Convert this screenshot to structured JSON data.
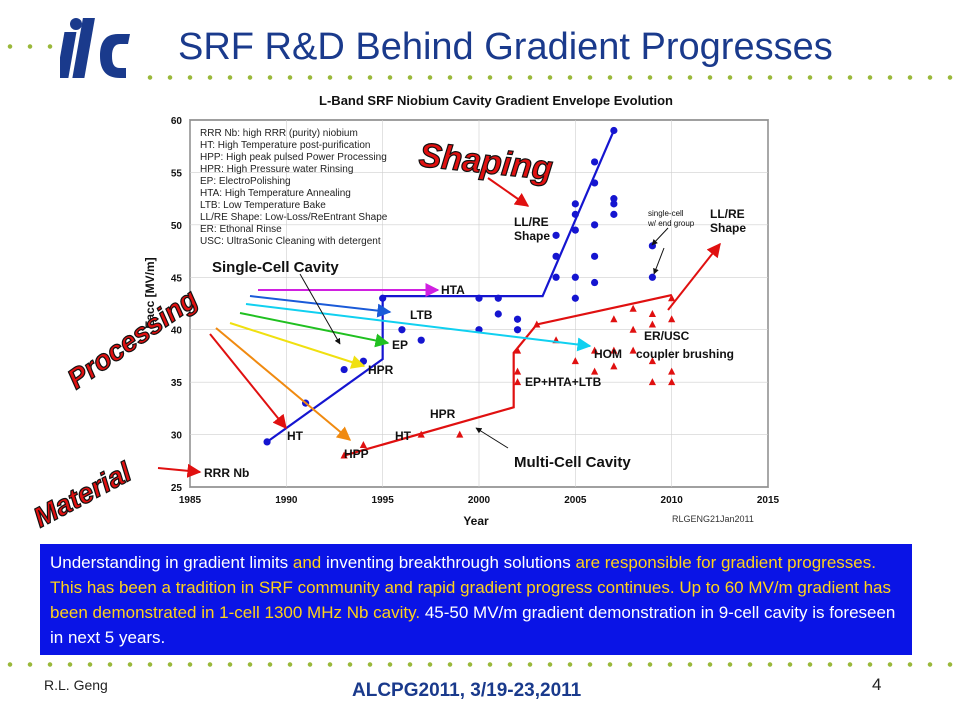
{
  "slide": {
    "logo_text": "ilc",
    "title": "SRF R&D Behind Gradient Progresses",
    "footer_author": "R.L. Geng",
    "footer_conference": "ALCPG2011, 3/19-23,2011",
    "page_number": "4"
  },
  "textbox": {
    "segments": [
      {
        "text": "Understanding in gradient limits ",
        "color": "white"
      },
      {
        "text": "and",
        "color": "yellow"
      },
      {
        "text": " inventing breakthrough solutions ",
        "color": "white"
      },
      {
        "text": "are responsible for",
        "color": "yellow"
      },
      {
        "text": " gradient progresses. This has been a tradition in SRF community and rapid gradient progress continues. Up to 60 MV/m gradient has been demonstrated in 1-cell 1300 MHz Nb cavity. ",
        "color": "yellow"
      },
      {
        "text": "45-50 MV/m gradient demonstration in 9-cell cavity is foreseen in next 5 years.",
        "color": "white"
      }
    ]
  },
  "chart_data": {
    "type": "scatter",
    "title": "L-Band SRF Niobium Cavity Gradient Envelope Evolution",
    "xlabel": "Year",
    "ylabel": "Eacc [MV/m]",
    "xlim": [
      1985,
      2015
    ],
    "ylim": [
      25,
      60
    ],
    "xticks": [
      1985,
      1990,
      1995,
      2000,
      2005,
      2010,
      2015
    ],
    "yticks": [
      25,
      30,
      35,
      40,
      45,
      50,
      55,
      60
    ],
    "credit": "RLGENG21Jan2011",
    "legend": [
      "RRR Nb: high RRR (purity) niobium",
      "HT: High Temperature post-purification",
      "HPP: High peak pulsed Power Processing",
      "HPR: High Pressure water Rinsing",
      "EP: ElectroPolishing",
      "HTA: High Temperature Annealing",
      "LTB: Low Temperature Bake",
      "LL/RE Shape: Low-Loss/ReEntrant Shape",
      "ER: Ethonal Rinse",
      "USC: UltraSonic Cleaning with detergent"
    ],
    "series": [
      {
        "name": "Single-Cell Cavity",
        "color": "#1515d0",
        "marker": "circle",
        "points": [
          [
            1989,
            29.3
          ],
          [
            1991,
            33
          ],
          [
            1993,
            36.2
          ],
          [
            1994,
            37
          ],
          [
            1995,
            43
          ],
          [
            1996,
            40
          ],
          [
            1997,
            39
          ],
          [
            2000,
            43
          ],
          [
            2000,
            40
          ],
          [
            2001,
            43
          ],
          [
            2001,
            41.5
          ],
          [
            2002,
            40
          ],
          [
            2002,
            41
          ],
          [
            2004,
            45
          ],
          [
            2004,
            47
          ],
          [
            2004,
            49
          ],
          [
            2005,
            43
          ],
          [
            2005,
            45
          ],
          [
            2005,
            49.5
          ],
          [
            2005,
            51
          ],
          [
            2005,
            52
          ],
          [
            2006,
            44.5
          ],
          [
            2006,
            47
          ],
          [
            2006,
            50
          ],
          [
            2006,
            54
          ],
          [
            2006,
            56
          ],
          [
            2007,
            51
          ],
          [
            2007,
            52
          ],
          [
            2007,
            52.5
          ],
          [
            2007,
            59
          ],
          [
            2009,
            48
          ],
          [
            2009,
            45
          ]
        ]
      },
      {
        "name": "Multi-Cell Cavity",
        "color": "#e01010",
        "marker": "triangle",
        "points": [
          [
            1993,
            28
          ],
          [
            1994,
            29
          ],
          [
            1997,
            30
          ],
          [
            1999,
            30
          ],
          [
            2002,
            36
          ],
          [
            2002,
            35
          ],
          [
            2002,
            38
          ],
          [
            2003,
            40.5
          ],
          [
            2004,
            39
          ],
          [
            2005,
            37
          ],
          [
            2006,
            38
          ],
          [
            2006,
            36
          ],
          [
            2007,
            41
          ],
          [
            2007,
            38
          ],
          [
            2007,
            36.5
          ],
          [
            2008,
            42
          ],
          [
            2008,
            40
          ],
          [
            2008,
            38
          ],
          [
            2009,
            41.5
          ],
          [
            2009,
            40.5
          ],
          [
            2009,
            35
          ],
          [
            2009,
            37
          ],
          [
            2010,
            43
          ],
          [
            2010,
            41
          ],
          [
            2010,
            36
          ],
          [
            2010,
            35
          ]
        ]
      }
    ],
    "envelope_single_cell": [
      [
        1989,
        29.3
      ],
      [
        1995,
        37.2
      ],
      [
        1995,
        43.2
      ],
      [
        2003.3,
        43.2
      ],
      [
        2007,
        59
      ]
    ],
    "envelope_multi_cell": [
      [
        1993,
        28
      ],
      [
        2001.8,
        32.6
      ],
      [
        2001.8,
        37.8
      ],
      [
        2003,
        40.5
      ],
      [
        2010,
        43.3
      ]
    ],
    "annotations": {
      "single_cell_cavity": "Single-Cell Cavity",
      "multi_cell_cavity": "Multi-Cell Cavity",
      "hta": "HTA",
      "ltb": "LTB",
      "ep": "EP",
      "hpr_single": "HPR",
      "ht_single": "HT",
      "hpp": "HPP",
      "ht_multi": "HT",
      "hpr_multi": "HPR",
      "rrr_nb": "RRR Nb",
      "hom": "HOM",
      "coupler_brushing": "coupler brushing",
      "er_usc": "ER/USC",
      "ep_hta_ltb": "EP+HTA+LTB",
      "ll_re_shape_1_a": "LL/RE",
      "ll_re_shape_1_b": "Shape",
      "ll_re_shape_2_a": "LL/RE",
      "ll_re_shape_2_b": "Shape",
      "single_cell_end_group_a": "single-cell",
      "single_cell_end_group_b": "w/ end group",
      "shaping": "Shaping",
      "processing": "Processing",
      "material": "Material"
    }
  }
}
